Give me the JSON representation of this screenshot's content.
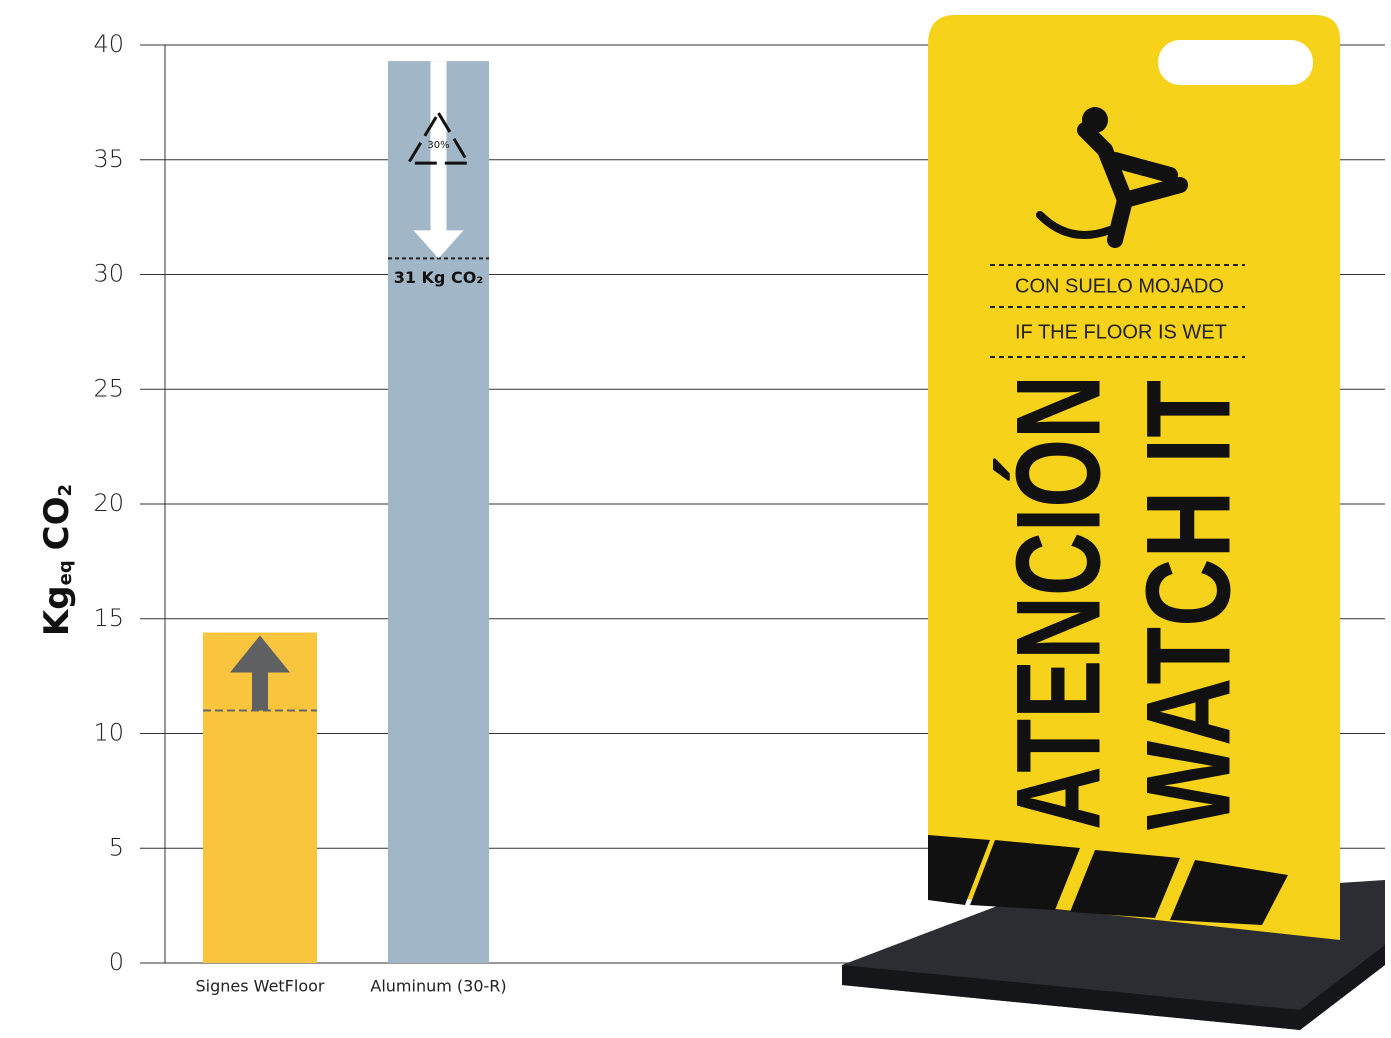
{
  "chart_data": {
    "type": "bar",
    "ylabel_parts": [
      {
        "text": "Kg",
        "sub": false
      },
      {
        "text": "eq",
        "sub": true
      },
      {
        "text": "CO",
        "sub": false
      },
      {
        "text": "2",
        "sub": true
      }
    ],
    "categories": [
      "Signes WetFloor",
      "Aluminum (30-R)"
    ],
    "values": [
      14.4,
      39.3
    ],
    "colors": [
      "#f9c53f",
      "#a1b7c7"
    ],
    "reference_values": [
      11,
      30.7
    ],
    "reference_labels": [
      null,
      "31 Kg CO₂"
    ],
    "recycle_label": "30%",
    "ylim": [
      0,
      40
    ],
    "yticks": [
      0,
      5,
      10,
      15,
      20,
      25,
      30,
      35,
      40
    ],
    "grid": true
  },
  "sign": {
    "lines": [
      "CON SUELO MOJADO",
      "IF THE FLOOR IS WET"
    ],
    "headline": [
      "ATENCIÓN",
      "WATCH IT"
    ]
  }
}
